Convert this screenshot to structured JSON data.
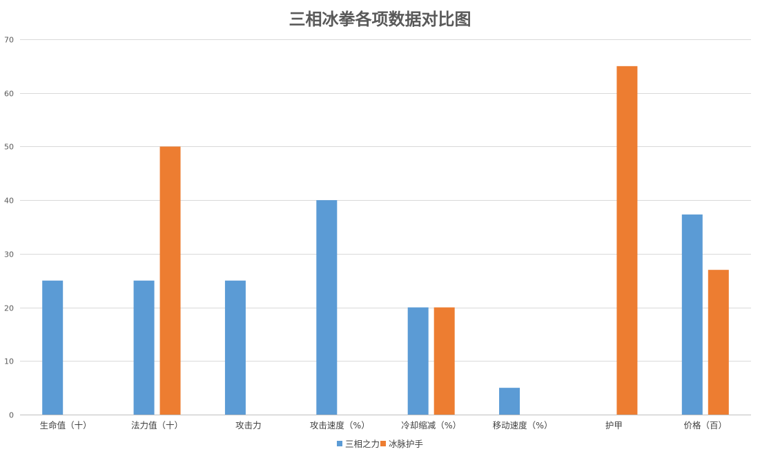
{
  "chart_data": {
    "type": "bar",
    "title": "三相冰拳各项数据对比图",
    "categories": [
      "生命值（十）",
      "法力值（十）",
      "攻击力",
      "攻击速度（%）",
      "冷却缩减（%）",
      "移动速度（%）",
      "护甲",
      "价格（百）"
    ],
    "series": [
      {
        "name": "三相之力",
        "color": "#5b9bd5",
        "values": [
          25,
          25,
          25,
          40,
          20,
          5,
          0,
          37.33
        ]
      },
      {
        "name": "冰脉护手",
        "color": "#ed7d31",
        "values": [
          0,
          50,
          0,
          0,
          20,
          0,
          65,
          27
        ]
      }
    ],
    "ylim": [
      0,
      70
    ],
    "yticks": [
      0,
      10,
      20,
      30,
      40,
      50,
      60,
      70
    ],
    "grid": true,
    "legend_position": "bottom-center"
  }
}
